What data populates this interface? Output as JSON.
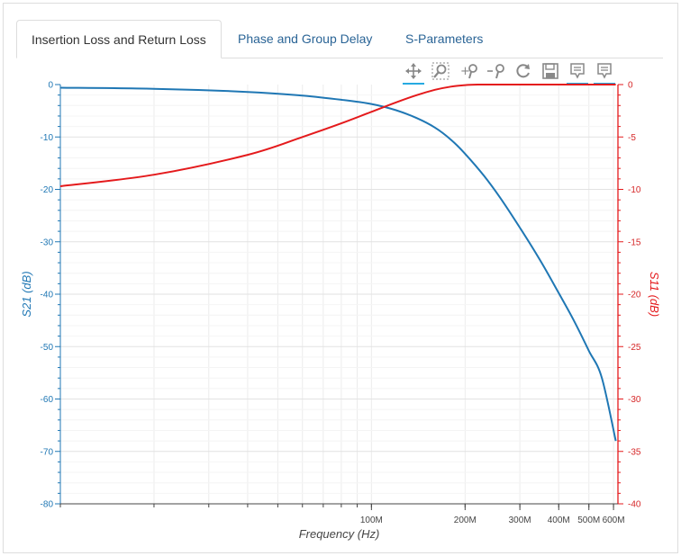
{
  "tabs": [
    {
      "label": "Insertion Loss and Return Loss",
      "active": true
    },
    {
      "label": "Phase and Group Delay",
      "active": false
    },
    {
      "label": "S-Parameters",
      "active": false
    }
  ],
  "toolbar": {
    "tools": [
      {
        "icon": "pan-icon",
        "active": true
      },
      {
        "icon": "box-zoom-icon",
        "active": false
      },
      {
        "icon": "zoom-in-icon",
        "active": false
      },
      {
        "icon": "zoom-out-icon",
        "active": false
      },
      {
        "icon": "reset-icon",
        "active": false
      },
      {
        "icon": "save-icon",
        "active": false
      },
      {
        "icon": "hover-tooltip-icon",
        "active": true
      },
      {
        "icon": "hover-tooltip-icon",
        "active": true
      }
    ]
  },
  "colors": {
    "s21": "#1f77b4",
    "s11": "#e41a1c",
    "grid": "#ececec",
    "tab_link": "#2a6496",
    "tool_active": "#26aae1"
  },
  "chart_data": {
    "type": "line",
    "xlabel": "Frequency (Hz)",
    "xscale": "log",
    "xlim": [
      10000000,
      620000000
    ],
    "xticks": [
      {
        "value": 100000000,
        "label": "100M"
      },
      {
        "value": 200000000,
        "label": "200M"
      },
      {
        "value": 300000000,
        "label": "300M"
      },
      {
        "value": 400000000,
        "label": "400M"
      },
      {
        "value": 500000000,
        "label": "500M"
      },
      {
        "value": 600000000,
        "label": "600M"
      }
    ],
    "ylabel_left": "S21 (dB)",
    "ylim_left": [
      -80,
      0
    ],
    "yticks_left": [
      0,
      -10,
      -20,
      -30,
      -40,
      -50,
      -60,
      -70,
      -80
    ],
    "ylabel_right": "S11 (dB)",
    "ylim_right": [
      -40,
      0
    ],
    "yticks_right": [
      0,
      -5,
      -10,
      -15,
      -20,
      -25,
      -30,
      -35,
      -40
    ],
    "grid": true,
    "series": [
      {
        "axis": "left",
        "x": [
          10000000,
          20000000,
          40000000,
          60000000,
          80000000,
          100000000,
          120000000,
          140000000,
          160000000,
          180000000,
          200000000,
          230000000,
          260000000,
          300000000,
          350000000,
          400000000,
          450000000,
          500000000,
          550000000,
          610000000
        ],
        "y": [
          -0.6,
          -0.8,
          -1.4,
          -2.1,
          -2.9,
          -3.7,
          -4.9,
          -6.4,
          -8.2,
          -10.5,
          -13.2,
          -17.4,
          -21.7,
          -27.3,
          -33.7,
          -39.8,
          -45.3,
          -50.8,
          -55.9,
          -68.0
        ]
      },
      {
        "axis": "right",
        "x": [
          10000000,
          20000000,
          40000000,
          60000000,
          80000000,
          100000000,
          120000000,
          140000000,
          160000000,
          180000000,
          200000000,
          220000000,
          250000000,
          300000000,
          400000000,
          500000000,
          610000000
        ],
        "y": [
          -9.7,
          -8.6,
          -6.7,
          -5.0,
          -3.7,
          -2.6,
          -1.7,
          -1.0,
          -0.5,
          -0.2,
          -0.05,
          0,
          0,
          0,
          0,
          0,
          0
        ]
      }
    ]
  }
}
